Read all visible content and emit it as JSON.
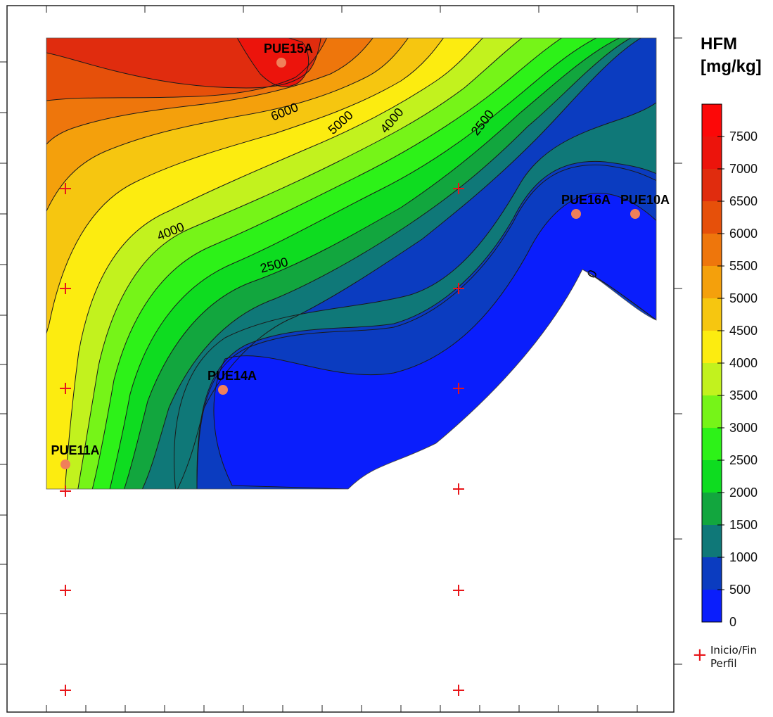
{
  "legend": {
    "title_line1": "HFM",
    "title_line2": "[mg/kg]",
    "bands": [
      {
        "from": 0,
        "to": 500,
        "color": "#0a1efc"
      },
      {
        "from": 500,
        "to": 1000,
        "color": "#0b3cc0"
      },
      {
        "from": 1000,
        "to": 1500,
        "color": "#0f7878"
      },
      {
        "from": 1500,
        "to": 2000,
        "color": "#12a63e"
      },
      {
        "from": 2000,
        "to": 2500,
        "color": "#0edc20"
      },
      {
        "from": 2500,
        "to": 3000,
        "color": "#2df218"
      },
      {
        "from": 3000,
        "to": 3500,
        "color": "#76f418"
      },
      {
        "from": 3500,
        "to": 4000,
        "color": "#c2f21e"
      },
      {
        "from": 4000,
        "to": 4500,
        "color": "#fcec10"
      },
      {
        "from": 4500,
        "to": 5000,
        "color": "#f6c610"
      },
      {
        "from": 5000,
        "to": 5500,
        "color": "#f4a00c"
      },
      {
        "from": 5500,
        "to": 6000,
        "color": "#ee760c"
      },
      {
        "from": 6000,
        "to": 6500,
        "color": "#e6500a"
      },
      {
        "from": 6500,
        "to": 7000,
        "color": "#e02c0e"
      },
      {
        "from": 7000,
        "to": 7500,
        "color": "#ec140c"
      },
      {
        "from": 7500,
        "to": 8000,
        "color": "#fc0808"
      }
    ],
    "scale_labels": [
      "7500",
      "7000",
      "6500",
      "6000",
      "5500",
      "5000",
      "4500",
      "4000",
      "3500",
      "3000",
      "2500",
      "2000",
      "1500",
      "1000",
      "500",
      "0"
    ],
    "key_symbol": "+",
    "key_line1": "Inicio/Fin",
    "key_line2": "Perfil"
  },
  "contour_labels": [
    {
      "text": "6000"
    },
    {
      "text": "5000"
    },
    {
      "text": "4000"
    },
    {
      "text": "2500"
    },
    {
      "text": "4000"
    },
    {
      "text": "2500"
    },
    {
      "text": "0"
    }
  ],
  "samples": [
    {
      "name": "PUE15A"
    },
    {
      "name": "PUE16A"
    },
    {
      "name": "PUE10A"
    },
    {
      "name": "PUE14A"
    },
    {
      "name": "PUE11A"
    }
  ],
  "marker_color": "#e8161a",
  "sample_color": "#f0805a"
}
